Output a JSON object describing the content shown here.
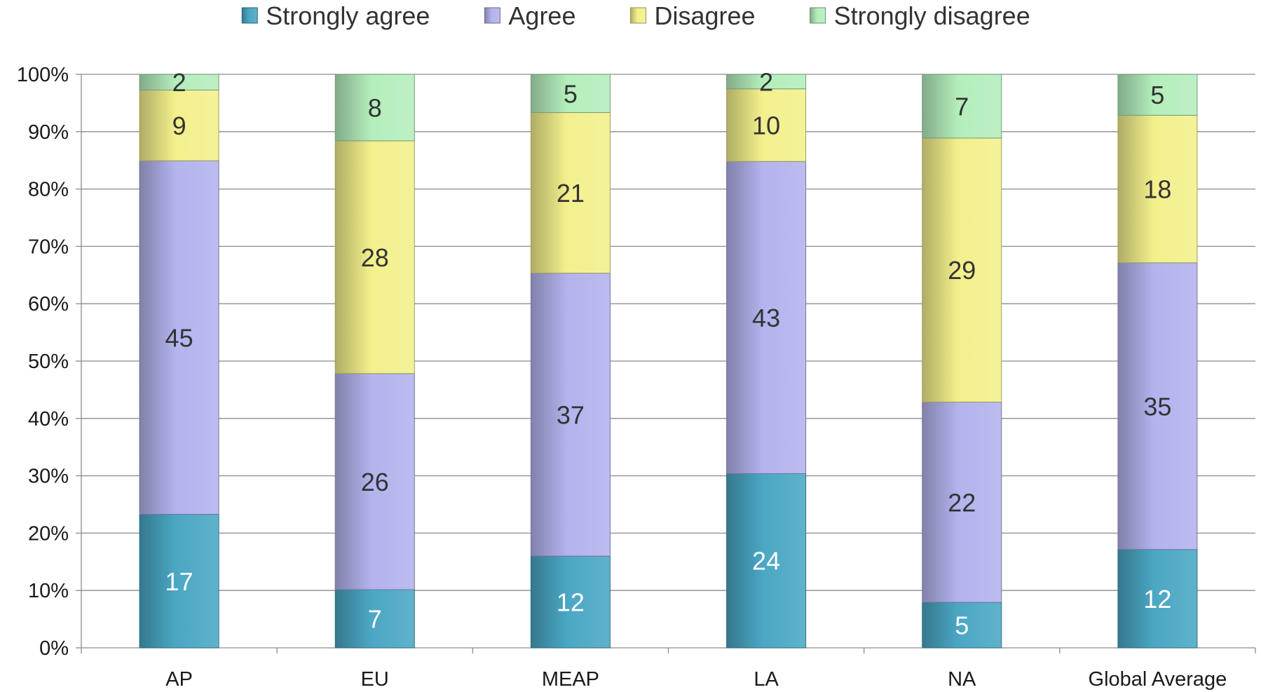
{
  "chart_data": {
    "type": "bar",
    "stacked": true,
    "percent_stacked": true,
    "categories": [
      "AP",
      "EU",
      "MEAP",
      "LA",
      "NA",
      "Global Average"
    ],
    "series": [
      {
        "name": "Strongly agree",
        "color": "#4aa7c4",
        "label_color": "#ffffff",
        "values": [
          17,
          7,
          12,
          24,
          5,
          12
        ]
      },
      {
        "name": "Agree",
        "color": "#b3b3ee",
        "label_color": "#333333",
        "values": [
          45,
          26,
          37,
          43,
          22,
          35
        ]
      },
      {
        "name": "Disagree",
        "color": "#f3f08c",
        "label_color": "#333333",
        "values": [
          9,
          28,
          21,
          10,
          29,
          18
        ]
      },
      {
        "name": "Strongly disagree",
        "color": "#b4eebc",
        "label_color": "#333333",
        "values": [
          2,
          8,
          5,
          2,
          7,
          5
        ]
      }
    ],
    "y_ticks": [
      "0%",
      "10%",
      "20%",
      "30%",
      "40%",
      "50%",
      "60%",
      "70%",
      "80%",
      "90%",
      "100%"
    ],
    "ylim": [
      0,
      100
    ],
    "grid": true,
    "legend_position": "top"
  }
}
